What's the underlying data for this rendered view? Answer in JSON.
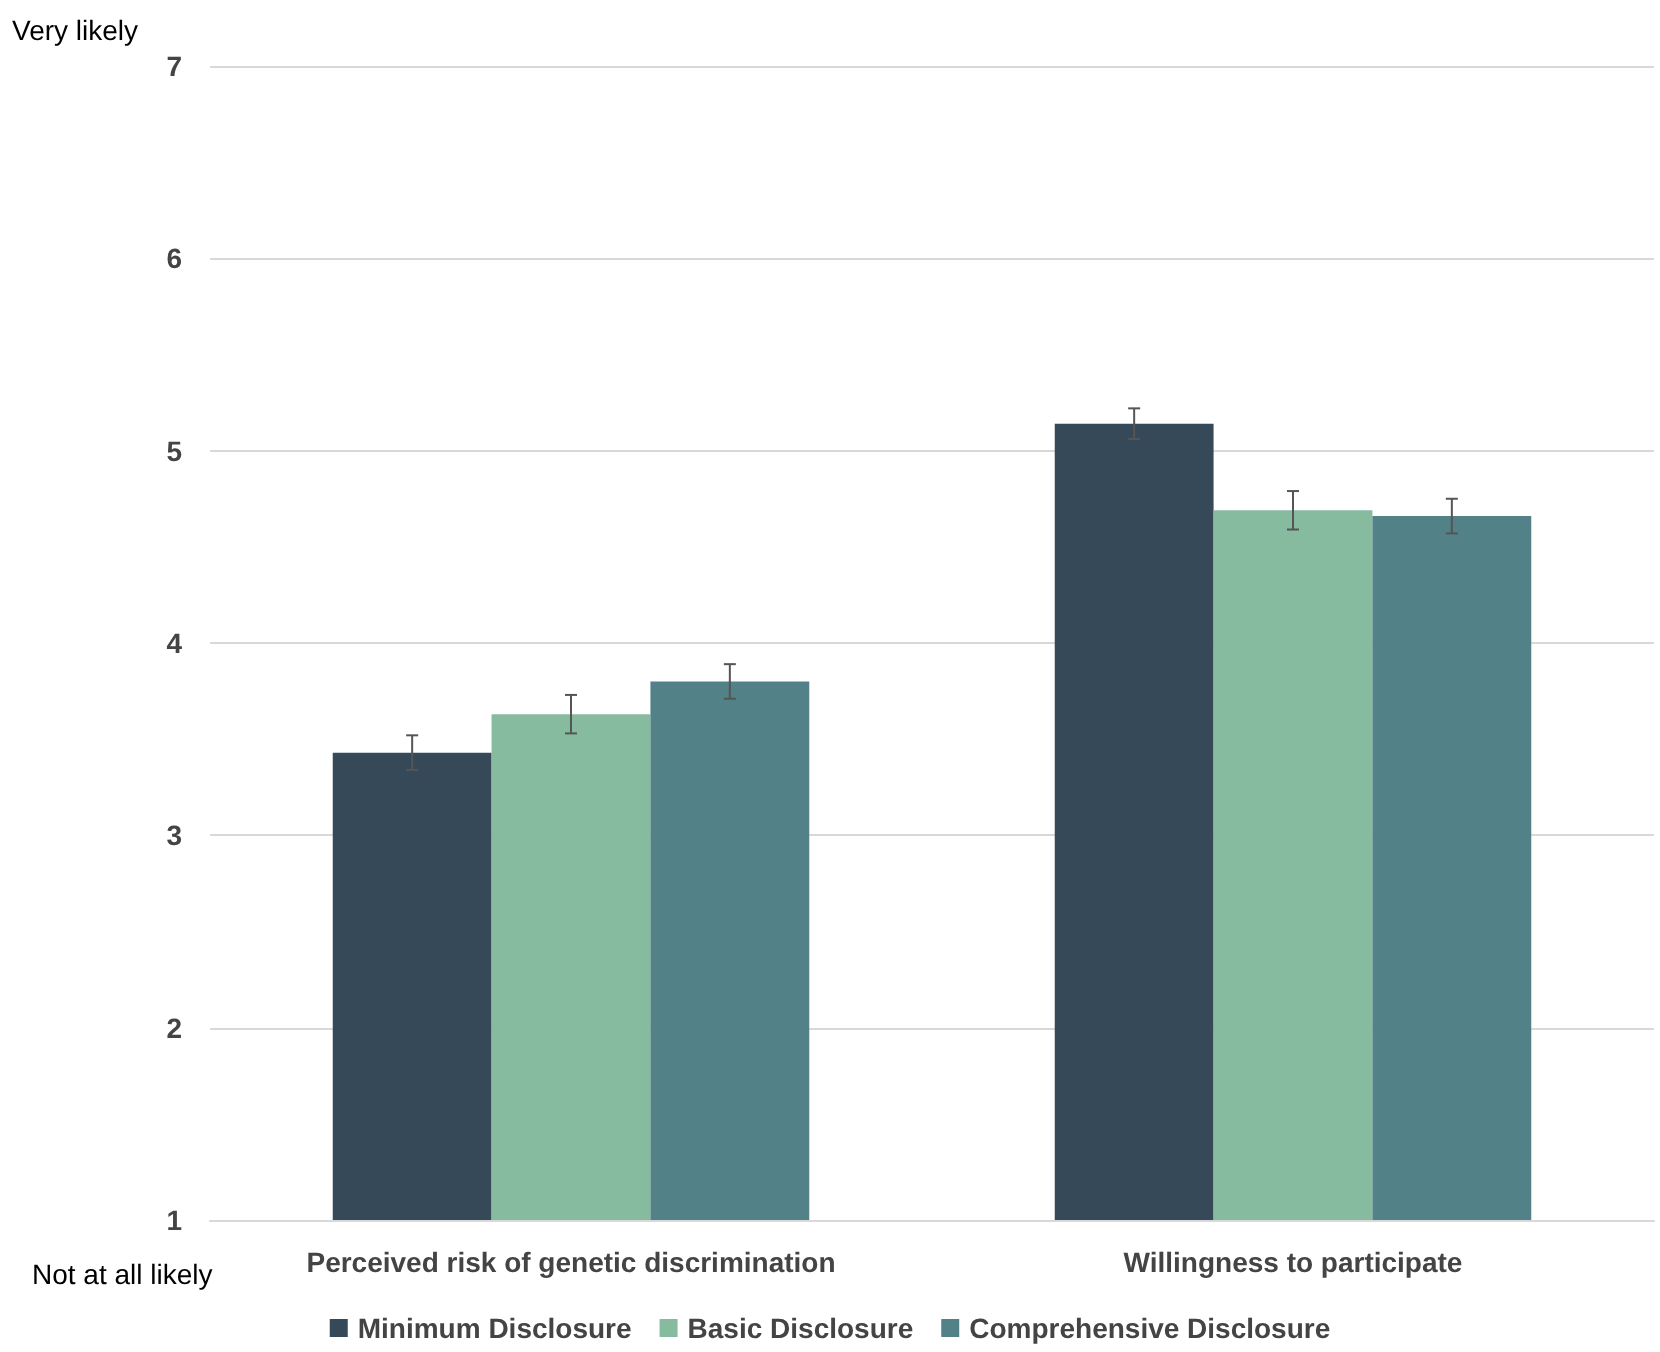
{
  "chart_data": {
    "type": "bar",
    "categories": [
      "Perceived risk of genetic discrimination",
      "Willingness to participate"
    ],
    "series": [
      {
        "name": "Minimum Disclosure",
        "color": "#354959",
        "values": [
          3.43,
          5.14
        ],
        "errors": [
          0.09,
          0.08
        ]
      },
      {
        "name": "Basic Disclosure",
        "color": "#87bba0",
        "values": [
          3.63,
          4.69
        ],
        "errors": [
          0.1,
          0.1
        ]
      },
      {
        "name": "Comprehensive Disclosure",
        "color": "#538188",
        "values": [
          3.8,
          4.66
        ],
        "errors": [
          0.09,
          0.09
        ]
      }
    ],
    "ylim": [
      1,
      7
    ],
    "yticks": [
      1,
      2,
      3,
      4,
      5,
      6,
      7
    ],
    "grid": "y",
    "legend": "bottom",
    "annotations": [
      "Very likely",
      "Not at all likely"
    ]
  }
}
